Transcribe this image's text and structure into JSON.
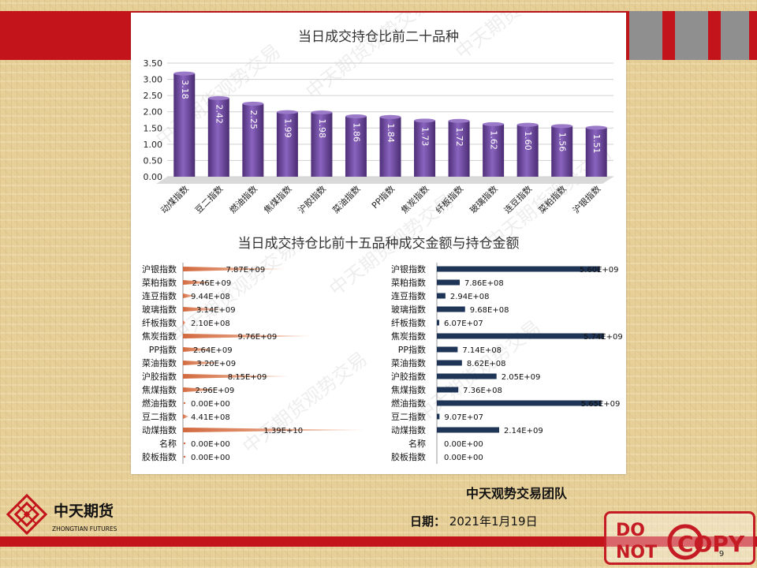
{
  "slide": {
    "team": "中天观势交易团队",
    "date_label": "日期：",
    "date_value": "2021年1月19日",
    "page_number": "9",
    "logo_cn": "中天期货",
    "logo_en": "ZHONGTIAN FUTURES",
    "stamp_line1": "DO",
    "stamp_line2": "NOT",
    "stamp_word": "COPY",
    "watermark": "中天期货观势交易",
    "colors": {
      "red": "#c4141b",
      "bar_purple": "#6c4a9a",
      "bar_navy": "#1f3557",
      "spike_orange": "#e8a07a"
    }
  },
  "chart_data": [
    {
      "type": "bar",
      "title": "当日成交持仓比前二十品种",
      "categories": [
        "动煤指数",
        "豆二指数",
        "燃油指数",
        "焦煤指数",
        "沪胶指数",
        "菜油指数",
        "PP指数",
        "焦炭指数",
        "纤板指数",
        "玻璃指数",
        "连豆指数",
        "菜粕指数",
        "沪银指数"
      ],
      "values": [
        3.18,
        2.42,
        2.25,
        1.99,
        1.98,
        1.86,
        1.84,
        1.73,
        1.72,
        1.62,
        1.6,
        1.56,
        1.51
      ],
      "value_labels": [
        "3.18",
        "2.42",
        "2.25",
        "1.99",
        "1.98",
        "1.86",
        "1.84",
        "1.73",
        "1.72",
        "1.62",
        "1.60",
        "1.56",
        "1.51"
      ],
      "yticks": [
        "0.00",
        "0.50",
        "1.00",
        "1.50",
        "2.00",
        "2.50",
        "3.00",
        "3.50"
      ],
      "ylim": [
        0,
        3.5
      ],
      "grid": true
    },
    {
      "type": "bar",
      "orientation": "horizontal",
      "title": "当日成交持仓比前十五品种成交金额与持仓金额",
      "categories": [
        "沪银指数",
        "菜粕指数",
        "连豆指数",
        "玻璃指数",
        "纤板指数",
        "焦炭指数",
        "PP指数",
        "菜油指数",
        "沪胶指数",
        "焦煤指数",
        "燃油指数",
        "豆二指数",
        "动煤指数",
        "名称",
        "胶板指数"
      ],
      "values": [
        7870000000.0,
        2460000000.0,
        944000000.0,
        3140000000.0,
        210000000.0,
        9760000000.0,
        2640000000.0,
        3200000000.0,
        8150000000.0,
        2960000000.0,
        0,
        441000000.0,
        13900000000.0,
        0,
        0
      ],
      "value_labels": [
        "7.87E+09",
        "2.46E+09",
        "9.44E+08",
        "3.14E+09",
        "2.10E+08",
        "9.76E+09",
        "2.64E+09",
        "3.20E+09",
        "8.15E+09",
        "2.96E+09",
        "0.00E+00",
        "4.41E+08",
        "1.39E+10",
        "0.00E+00",
        "0.00E+00"
      ]
    },
    {
      "type": "bar",
      "orientation": "horizontal",
      "categories": [
        "沪银指数",
        "菜粕指数",
        "连豆指数",
        "玻璃指数",
        "纤板指数",
        "焦炭指数",
        "PP指数",
        "菜油指数",
        "沪胶指数",
        "焦煤指数",
        "燃油指数",
        "豆二指数",
        "动煤指数",
        "名称",
        "胶板指数"
      ],
      "values": [
        5600000000.0,
        786000000.0,
        294000000.0,
        968000000.0,
        60700000.0,
        5740000000.0,
        714000000.0,
        862000000.0,
        2050000000.0,
        736000000.0,
        5650000000.0,
        90700000.0,
        2140000000.0,
        0,
        0
      ],
      "value_labels": [
        "5.60E+09",
        "7.86E+08",
        "2.94E+08",
        "9.68E+08",
        "6.07E+07",
        "5.74E+09",
        "7.14E+08",
        "8.62E+08",
        "2.05E+09",
        "7.36E+08",
        "5.65E+09",
        "9.07E+07",
        "2.14E+09",
        "0.00E+00",
        "0.00E+00"
      ]
    }
  ]
}
